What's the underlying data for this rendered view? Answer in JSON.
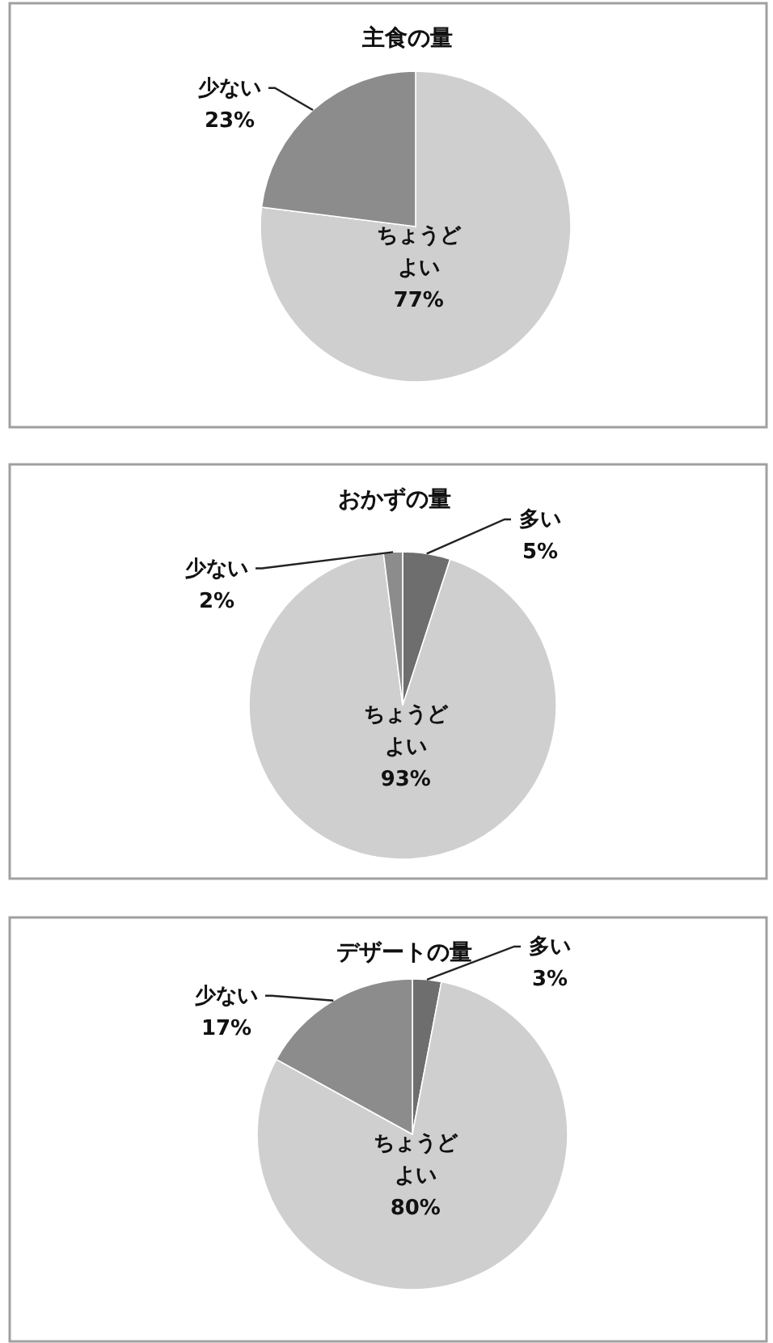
{
  "chart_data": [
    {
      "type": "pie",
      "title": "主食の量",
      "categories": [
        "ちょうどよい",
        "少ない"
      ],
      "values": [
        77,
        23
      ],
      "colors": [
        "#cfcfcf",
        "#8c8c8c"
      ],
      "value_labels": [
        "77%",
        "23%"
      ]
    },
    {
      "type": "pie",
      "title": "おかずの量",
      "categories": [
        "多い",
        "ちょうどよい",
        "少ない"
      ],
      "values": [
        5,
        93,
        2
      ],
      "colors": [
        "#6e6e6e",
        "#cfcfcf",
        "#8c8c8c"
      ],
      "value_labels": [
        "5%",
        "93%",
        "2%"
      ]
    },
    {
      "type": "pie",
      "title": "デザートの量",
      "categories": [
        "多い",
        "ちょうどよい",
        "少ない"
      ],
      "values": [
        3,
        80,
        17
      ],
      "colors": [
        "#6e6e6e",
        "#cfcfcf",
        "#8c8c8c"
      ],
      "value_labels": [
        "3%",
        "80%",
        "17%"
      ]
    }
  ]
}
